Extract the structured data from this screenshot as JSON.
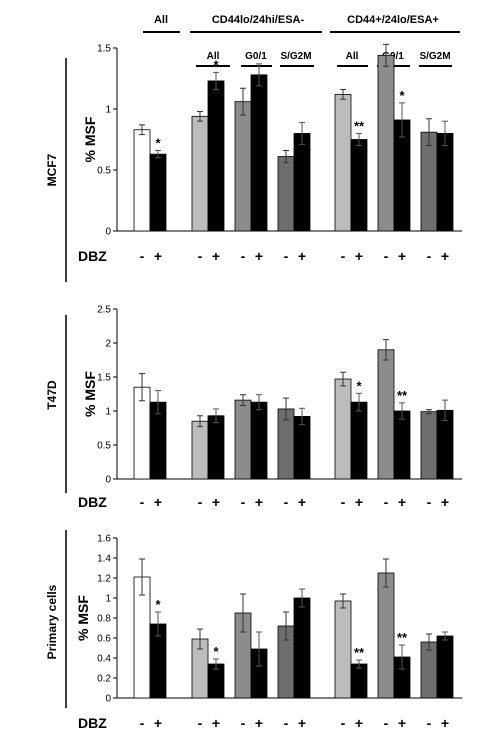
{
  "header": {
    "all": "All",
    "group1": "CD44lo/24hi/ESA-",
    "group2": "CD44+/24lo/ESA+",
    "sub_labels": [
      "All",
      "G0/1",
      "S/G2M",
      "All",
      "G0/1",
      "S/G2M"
    ]
  },
  "dbz_label": "DBZ",
  "treatment_signs": [
    "-",
    "+"
  ],
  "colors": {
    "white": "#ffffff",
    "light_gray": "#bcbcbc",
    "mid_gray": "#8c8c8c",
    "dark_gray": "#6e6e6e",
    "black": "#000000"
  },
  "chart_data": [
    {
      "type": "bar",
      "panel_label": "MCF7",
      "ylabel": "% MSF",
      "ylim": [
        0,
        1.5
      ],
      "yticks": [
        "0",
        "0.5",
        "1",
        "1.5"
      ],
      "groups": [
        {
          "name": "All",
          "fill": "white",
          "bars": [
            {
              "treatment": "-",
              "value": 0.83,
              "error": 0.04,
              "sig": ""
            },
            {
              "treatment": "+",
              "value": 0.63,
              "error": 0.03,
              "sig": "*"
            }
          ]
        },
        {
          "name": "CD44lo/24hi/ESA- All",
          "fill": "light_gray",
          "bars": [
            {
              "treatment": "-",
              "value": 0.94,
              "error": 0.04,
              "sig": ""
            },
            {
              "treatment": "+",
              "value": 1.23,
              "error": 0.07,
              "sig": "*"
            }
          ]
        },
        {
          "name": "CD44lo/24hi/ESA- G0/1",
          "fill": "mid_gray",
          "bars": [
            {
              "treatment": "-",
              "value": 1.06,
              "error": 0.11,
              "sig": ""
            },
            {
              "treatment": "+",
              "value": 1.28,
              "error": 0.09,
              "sig": ""
            }
          ]
        },
        {
          "name": "CD44lo/24hi/ESA- S/G2M",
          "fill": "dark_gray",
          "bars": [
            {
              "treatment": "-",
              "value": 0.61,
              "error": 0.05,
              "sig": ""
            },
            {
              "treatment": "+",
              "value": 0.8,
              "error": 0.09,
              "sig": ""
            }
          ]
        },
        {
          "name": "CD44+/24lo/ESA+ All",
          "fill": "light_gray",
          "bars": [
            {
              "treatment": "-",
              "value": 1.12,
              "error": 0.04,
              "sig": ""
            },
            {
              "treatment": "+",
              "value": 0.75,
              "error": 0.05,
              "sig": "**"
            }
          ]
        },
        {
          "name": "CD44+/24lo/ESA+ G0/1",
          "fill": "mid_gray",
          "bars": [
            {
              "treatment": "-",
              "value": 1.44,
              "error": 0.09,
              "sig": ""
            },
            {
              "treatment": "+",
              "value": 0.91,
              "error": 0.14,
              "sig": "*"
            }
          ]
        },
        {
          "name": "CD44+/24lo/ESA+ S/G2M",
          "fill": "dark_gray",
          "bars": [
            {
              "treatment": "-",
              "value": 0.81,
              "error": 0.11,
              "sig": ""
            },
            {
              "treatment": "+",
              "value": 0.8,
              "error": 0.1,
              "sig": ""
            }
          ]
        }
      ]
    },
    {
      "type": "bar",
      "panel_label": "T47D",
      "ylabel": "% MSF",
      "ylim": [
        0,
        2.5
      ],
      "yticks": [
        "0",
        "0.5",
        "1",
        "1.5",
        "2",
        "2.5"
      ],
      "groups": [
        {
          "name": "All",
          "fill": "white",
          "bars": [
            {
              "treatment": "-",
              "value": 1.35,
              "error": 0.2,
              "sig": ""
            },
            {
              "treatment": "+",
              "value": 1.13,
              "error": 0.17,
              "sig": ""
            }
          ]
        },
        {
          "name": "CD44lo/24hi/ESA- All",
          "fill": "light_gray",
          "bars": [
            {
              "treatment": "-",
              "value": 0.85,
              "error": 0.08,
              "sig": ""
            },
            {
              "treatment": "+",
              "value": 0.93,
              "error": 0.1,
              "sig": ""
            }
          ]
        },
        {
          "name": "CD44lo/24hi/ESA- G0/1",
          "fill": "mid_gray",
          "bars": [
            {
              "treatment": "-",
              "value": 1.16,
              "error": 0.08,
              "sig": ""
            },
            {
              "treatment": "+",
              "value": 1.13,
              "error": 0.11,
              "sig": ""
            }
          ]
        },
        {
          "name": "CD44lo/24hi/ESA- S/G2M",
          "fill": "dark_gray",
          "bars": [
            {
              "treatment": "-",
              "value": 1.03,
              "error": 0.16,
              "sig": ""
            },
            {
              "treatment": "+",
              "value": 0.92,
              "error": 0.12,
              "sig": ""
            }
          ]
        },
        {
          "name": "CD44+/24lo/ESA+ All",
          "fill": "light_gray",
          "bars": [
            {
              "treatment": "-",
              "value": 1.47,
              "error": 0.1,
              "sig": ""
            },
            {
              "treatment": "+",
              "value": 1.13,
              "error": 0.13,
              "sig": "*"
            }
          ]
        },
        {
          "name": "CD44+/24lo/ESA+ G0/1",
          "fill": "mid_gray",
          "bars": [
            {
              "treatment": "-",
              "value": 1.9,
              "error": 0.15,
              "sig": ""
            },
            {
              "treatment": "+",
              "value": 1.0,
              "error": 0.12,
              "sig": "**"
            }
          ]
        },
        {
          "name": "CD44+/24lo/ESA+ S/G2M",
          "fill": "dark_gray",
          "bars": [
            {
              "treatment": "-",
              "value": 0.99,
              "error": 0.03,
              "sig": ""
            },
            {
              "treatment": "+",
              "value": 1.01,
              "error": 0.15,
              "sig": ""
            }
          ]
        }
      ]
    },
    {
      "type": "bar",
      "panel_label": "Primary cells",
      "ylabel": "% MSF",
      "ylim": [
        0,
        1.6
      ],
      "yticks": [
        "0",
        "0.2",
        "0.4",
        "0.6",
        "0.8",
        "1",
        "1.2",
        "1.4",
        "1.6"
      ],
      "groups": [
        {
          "name": "All",
          "fill": "white",
          "bars": [
            {
              "treatment": "-",
              "value": 1.21,
              "error": 0.18,
              "sig": ""
            },
            {
              "treatment": "+",
              "value": 0.74,
              "error": 0.12,
              "sig": "*"
            }
          ]
        },
        {
          "name": "CD44lo/24hi/ESA- All",
          "fill": "light_gray",
          "bars": [
            {
              "treatment": "-",
              "value": 0.59,
              "error": 0.1,
              "sig": ""
            },
            {
              "treatment": "+",
              "value": 0.34,
              "error": 0.05,
              "sig": "*"
            }
          ]
        },
        {
          "name": "CD44lo/24hi/ESA- G0/1",
          "fill": "mid_gray",
          "bars": [
            {
              "treatment": "-",
              "value": 0.85,
              "error": 0.19,
              "sig": ""
            },
            {
              "treatment": "+",
              "value": 0.49,
              "error": 0.17,
              "sig": ""
            }
          ]
        },
        {
          "name": "CD44lo/24hi/ESA- S/G2M",
          "fill": "dark_gray",
          "bars": [
            {
              "treatment": "-",
              "value": 0.72,
              "error": 0.14,
              "sig": ""
            },
            {
              "treatment": "+",
              "value": 1.0,
              "error": 0.09,
              "sig": ""
            }
          ]
        },
        {
          "name": "CD44+/24lo/ESA+ All",
          "fill": "light_gray",
          "bars": [
            {
              "treatment": "-",
              "value": 0.97,
              "error": 0.07,
              "sig": ""
            },
            {
              "treatment": "+",
              "value": 0.34,
              "error": 0.04,
              "sig": "**"
            }
          ]
        },
        {
          "name": "CD44+/24lo/ESA+ G0/1",
          "fill": "mid_gray",
          "bars": [
            {
              "treatment": "-",
              "value": 1.25,
              "error": 0.14,
              "sig": ""
            },
            {
              "treatment": "+",
              "value": 0.41,
              "error": 0.12,
              "sig": "**"
            }
          ]
        },
        {
          "name": "CD44+/24lo/ESA+ S/G2M",
          "fill": "dark_gray",
          "bars": [
            {
              "treatment": "-",
              "value": 0.56,
              "error": 0.08,
              "sig": ""
            },
            {
              "treatment": "+",
              "value": 0.62,
              "error": 0.04,
              "sig": ""
            }
          ]
        }
      ]
    }
  ]
}
